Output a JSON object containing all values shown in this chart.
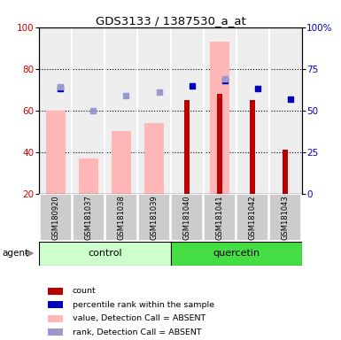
{
  "title": "GDS3133 / 1387530_a_at",
  "samples": [
    "GSM180920",
    "GSM181037",
    "GSM181038",
    "GSM181039",
    "GSM181040",
    "GSM181041",
    "GSM181042",
    "GSM181043"
  ],
  "ylim_left": [
    20,
    100
  ],
  "yticks_left": [
    20,
    40,
    60,
    80,
    100
  ],
  "yticks_right": [
    0,
    25,
    50,
    75,
    100
  ],
  "ytick_labels_right": [
    "0",
    "25",
    "50",
    "75",
    "100%"
  ],
  "pink_bars_top": [
    60,
    37,
    50,
    54,
    0,
    93,
    0,
    0
  ],
  "red_bars_top": [
    0,
    0,
    0,
    0,
    65,
    68,
    65,
    41
  ],
  "blue_sq_pct": [
    63,
    0,
    0,
    0,
    65,
    68,
    63,
    57
  ],
  "blue_sq_show": [
    true,
    false,
    false,
    false,
    true,
    true,
    true,
    true
  ],
  "lav_sq_pct": [
    64,
    50,
    59,
    61,
    0,
    69,
    0,
    0
  ],
  "lav_sq_show": [
    true,
    true,
    true,
    true,
    false,
    true,
    false,
    false
  ],
  "pink_color": "#ffb6b6",
  "red_color": "#bb0000",
  "blue_color": "#0000bb",
  "lav_color": "#9999cc",
  "left_axis_color": "#cc0000",
  "right_axis_color": "#0000cc",
  "plot_bg": "#eeeeee",
  "col_sep_color": "#ffffff",
  "grid_color": "#000000",
  "control_color": "#ccffcc",
  "quercetin_color": "#44dd44",
  "sample_bg": "#cccccc"
}
